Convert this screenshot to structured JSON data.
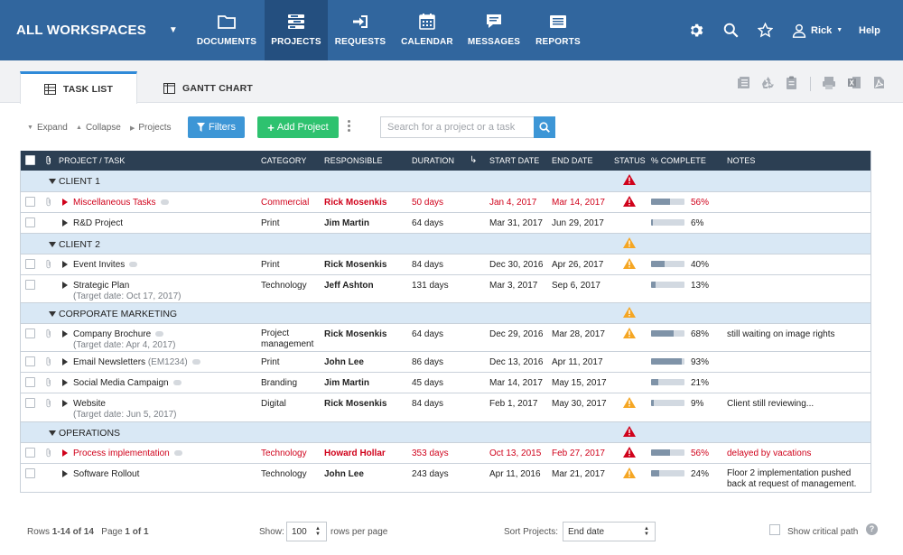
{
  "nav": {
    "workspace": "ALL WORKSPACES",
    "items": [
      {
        "label": "DOCUMENTS",
        "icon": "folder-icon"
      },
      {
        "label": "PROJECTS",
        "icon": "projects-icon",
        "active": true
      },
      {
        "label": "REQUESTS",
        "icon": "sign-in-icon"
      },
      {
        "label": "CALENDAR",
        "icon": "calendar-icon"
      },
      {
        "label": "MESSAGES",
        "icon": "chat-icon"
      },
      {
        "label": "REPORTS",
        "icon": "reports-icon"
      }
    ],
    "user": "Rick",
    "help": "Help"
  },
  "tabs": {
    "task_list": "TASK LIST",
    "gantt_chart": "GANTT CHART"
  },
  "toolbar": {
    "expand": "Expand",
    "collapse": "Collapse",
    "projects": "Projects",
    "filters": "Filters",
    "add_project": "Add Project",
    "search_placeholder": "Search for a project or a task"
  },
  "table": {
    "headers": {
      "project": "PROJECT / TASK",
      "category": "CATEGORY",
      "responsible": "RESPONSIBLE",
      "duration": "DURATION",
      "start": "START DATE",
      "end": "END DATE",
      "status": "STATUS",
      "complete": "% COMPLETE",
      "notes": "NOTES"
    },
    "groups": [
      {
        "name": "CLIENT 1",
        "status": "red"
      },
      {
        "name": "CLIENT 2",
        "status": "orange"
      },
      {
        "name": "CORPORATE MARKETING",
        "status": "orange"
      },
      {
        "name": "OPERATIONS",
        "status": "red"
      }
    ],
    "rows": [
      {
        "name": "Miscellaneous Tasks",
        "category": "Commercial",
        "responsible": "Rick Mosenkis",
        "duration": "50 days",
        "start": "Jan 4, 2017",
        "end": "Mar 14, 2017",
        "status": "red",
        "pct": "56%",
        "pct_value": 56,
        "notes": ""
      },
      {
        "name": "R&D Project",
        "category": "Print",
        "responsible": "Jim Martin",
        "duration": "64 days",
        "start": "Mar 31, 2017",
        "end": "Jun 29, 2017",
        "status": "",
        "pct": "6%",
        "pct_value": 6,
        "notes": ""
      },
      {
        "name": "Event Invites",
        "category": "Print",
        "responsible": "Rick Mosenkis",
        "duration": "84 days",
        "start": "Dec 30, 2016",
        "end": "Apr 26, 2017",
        "status": "orange",
        "pct": "40%",
        "pct_value": 40,
        "notes": ""
      },
      {
        "name": "Strategic Plan",
        "sub": "(Target date: Oct 17, 2017)",
        "category": "Technology",
        "responsible": "Jeff Ashton",
        "duration": "131 days",
        "start": "Mar 3, 2017",
        "end": "Sep 6, 2017",
        "status": "",
        "pct": "13%",
        "pct_value": 13,
        "notes": ""
      },
      {
        "name": "Company Brochure",
        "sub": "(Target date: Apr 4, 2017)",
        "category": "Project",
        "category2": "management",
        "responsible": "Rick Mosenkis",
        "duration": "64 days",
        "start": "Dec 29, 2016",
        "end": "Mar 28, 2017",
        "status": "orange",
        "pct": "68%",
        "pct_value": 68,
        "notes": "still waiting on image rights"
      },
      {
        "name": "Email Newsletters",
        "code": "(EM1234)",
        "category": "Print",
        "responsible": "John Lee",
        "duration": "86 days",
        "start": "Dec 13, 2016",
        "end": "Apr 11, 2017",
        "status": "",
        "pct": "93%",
        "pct_value": 93,
        "notes": ""
      },
      {
        "name": "Social Media Campaign",
        "category": "Branding",
        "responsible": "Jim Martin",
        "duration": "45 days",
        "start": "Mar 14, 2017",
        "end": "May 15, 2017",
        "status": "",
        "pct": "21%",
        "pct_value": 21,
        "notes": ""
      },
      {
        "name": "Website",
        "sub": "(Target date: Jun 5, 2017)",
        "category": "Digital",
        "responsible": "Rick Mosenkis",
        "duration": "84 days",
        "start": "Feb 1, 2017",
        "end": "May 30, 2017",
        "status": "orange",
        "pct": "9%",
        "pct_value": 9,
        "notes": "Client still reviewing..."
      },
      {
        "name": "Process implementation",
        "category": "Technology",
        "responsible": "Howard Hollar",
        "duration": "353 days",
        "start": "Oct 13, 2015",
        "end": "Feb 27, 2017",
        "status": "red",
        "pct": "56%",
        "pct_value": 56,
        "notes": "delayed by vacations"
      },
      {
        "name": "Software Rollout",
        "category": "Technology",
        "responsible": "John Lee",
        "duration": "243 days",
        "start": "Apr 11, 2016",
        "end": "Mar 21, 2017",
        "status": "orange",
        "pct": "24%",
        "pct_value": 24,
        "notes": "Floor 2 implementation pushed",
        "notes2": "back at request of management."
      }
    ]
  },
  "footer": {
    "rows_label": "Rows",
    "rows_range": "1-14 of 14",
    "page_label": "Page",
    "page_value": "1 of 1",
    "show_label": "Show:",
    "show_value": "100",
    "rows_per_page": "rows per page",
    "sort_label": "Sort Projects:",
    "sort_value": "End date",
    "critical_path": "Show critical path",
    "help_icon_glyph": "?"
  },
  "colors": {
    "nav_bg": "#31669e",
    "nav_active": "#244f7f",
    "header_bg": "#2c3f53",
    "group_bg": "#d9e8f5",
    "accent_blue": "#3d96d6",
    "add_green": "#2ec26f",
    "status_red": "#d0021b",
    "status_orange": "#f5a623"
  }
}
